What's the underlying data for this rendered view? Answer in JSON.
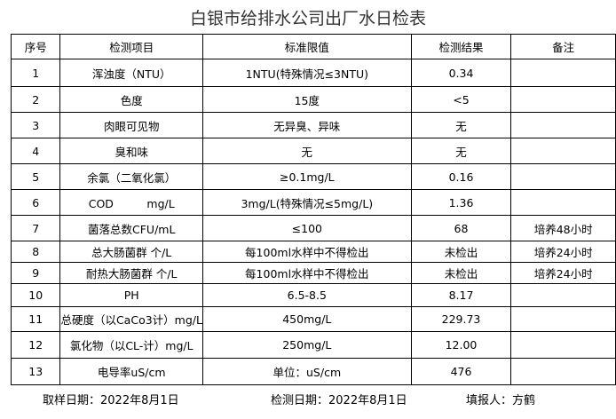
{
  "title": "白银市给排水公司出厂水日检表",
  "table": {
    "header": [
      "序号",
      "检测项目",
      "标准限值",
      "检测结果",
      "备注"
    ],
    "rows": [
      [
        "1",
        "浑浊度（NTU）",
        "1NTU(特殊情况≤3NTU)",
        "0.34"
      ],
      [
        "2",
        "色度",
        "15度",
        "<5"
      ],
      [
        "3",
        "肉眼可见物",
        "无异臭、异味",
        "无"
      ],
      [
        "4",
        "臭和味",
        "无",
        "无"
      ],
      [
        "5",
        "余氯（二氧化氯）",
        "≥0.1mg/L",
        "0.16"
      ],
      [
        "6",
        "COD　　　mg/L",
        "3mg/L(特殊情况≤5mg/L)",
        "1.36"
      ],
      [
        "7",
        "菌落总数CFU/mL",
        "≤100",
        "68",
        "培养48小时"
      ],
      [
        "8",
        "总大肠菌群  个/L",
        "每100ml水样中不得检出",
        "未检出",
        "培养24小时"
      ],
      [
        "9",
        "耐热大肠菌群  个/L",
        "每100ml水样中不得检出",
        "未检出",
        "培养24小时"
      ],
      [
        "10",
        "PH",
        "6.5-8.5",
        "8.17"
      ],
      [
        "11",
        "总硬度（以CaCo3计）mg/L",
        "450mg/L",
        "229.73"
      ],
      [
        "12",
        "氯化物（以CL-计）mg/L",
        "250mg/L",
        "12.00"
      ],
      [
        "13",
        "电导率uS/cm",
        "单位：uS/cm",
        "476"
      ]
    ]
  },
  "footer": [
    "取样日期：2022年8月1日",
    "检测日期：2022年8月1日",
    "填报人：方鹤"
  ]
}
